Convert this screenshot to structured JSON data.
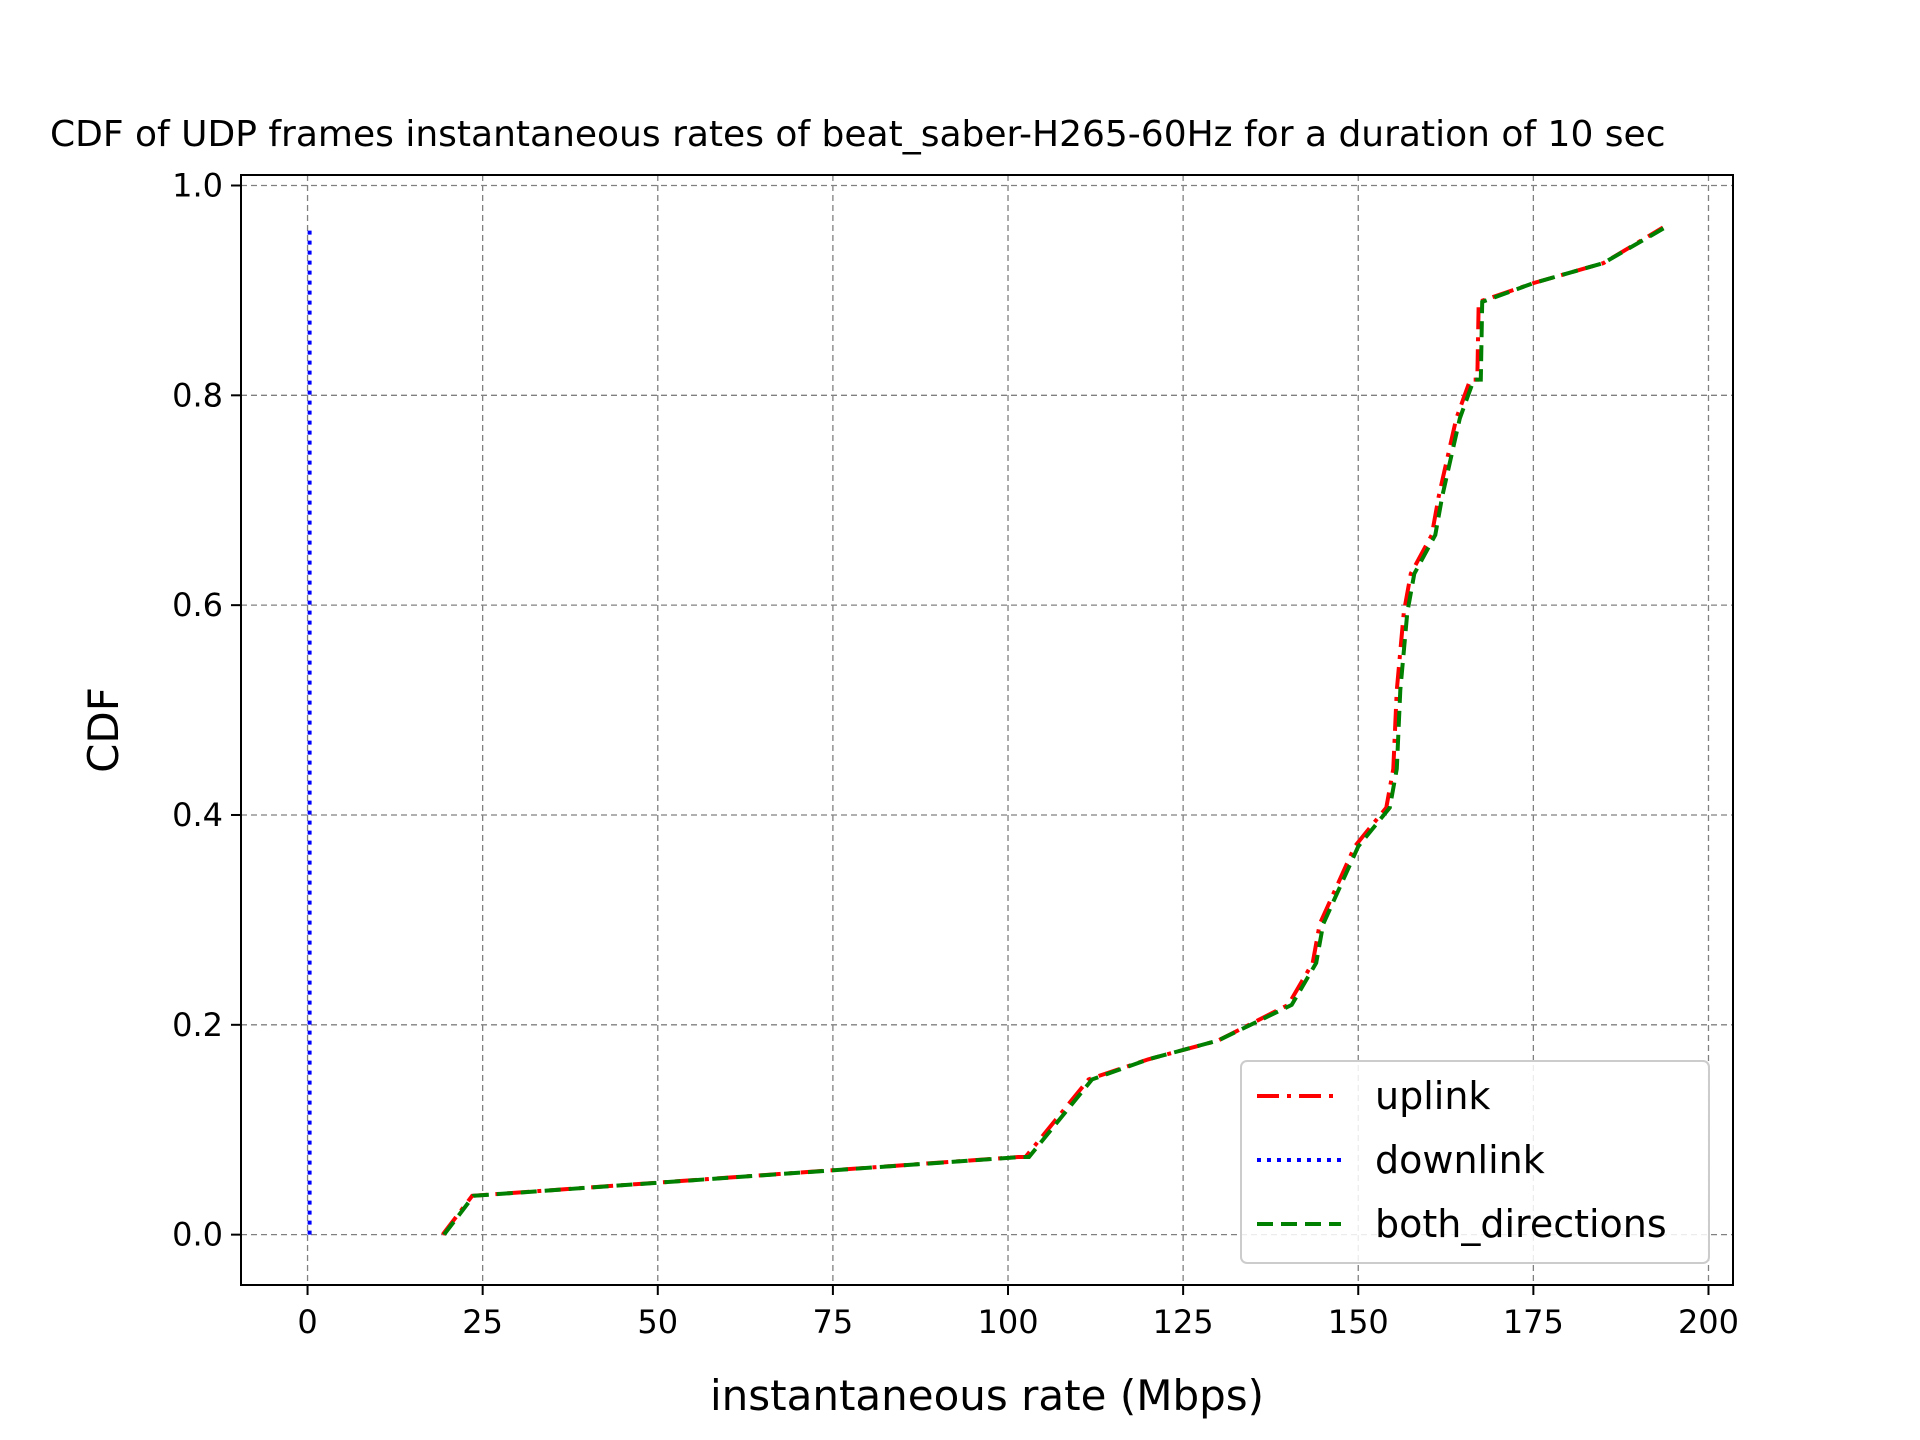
{
  "chart_data": {
    "type": "line",
    "title": "CDF of UDP frames instantaneous rates of beat_saber-H265-60Hz for a duration of 10 sec",
    "xlabel": "instantaneous rate (Mbps)",
    "ylabel": "CDF",
    "xlim": [
      -9.5,
      203.5
    ],
    "ylim": [
      -0.048,
      1.01
    ],
    "xticks": [
      0,
      25,
      50,
      75,
      100,
      125,
      150,
      175,
      200
    ],
    "xtick_labels": [
      "0",
      "25",
      "50",
      "75",
      "100",
      "125",
      "150",
      "175",
      "200"
    ],
    "yticks": [
      0.0,
      0.2,
      0.4,
      0.6,
      0.8,
      1.0
    ],
    "ytick_labels": [
      "0.0",
      "0.2",
      "0.4",
      "0.6",
      "0.8",
      "1.0"
    ],
    "grid": true,
    "legend_position": "lower-right",
    "series": [
      {
        "name": "uplink",
        "color": "#ff0000",
        "style": "dash-dot",
        "points": [
          [
            19.3,
            0.0
          ],
          [
            23.5,
            0.037
          ],
          [
            101.5,
            0.074
          ],
          [
            102.5,
            0.074
          ],
          [
            111.5,
            0.148
          ],
          [
            120,
            0.167
          ],
          [
            130,
            0.185
          ],
          [
            140,
            0.219
          ],
          [
            143.5,
            0.259
          ],
          [
            144.5,
            0.296
          ],
          [
            147,
            0.333
          ],
          [
            149.5,
            0.37
          ],
          [
            154,
            0.407
          ],
          [
            155,
            0.444
          ],
          [
            155.5,
            0.519
          ],
          [
            156.5,
            0.593
          ],
          [
            157.5,
            0.63
          ],
          [
            160.5,
            0.667
          ],
          [
            161.5,
            0.704
          ],
          [
            164,
            0.778
          ],
          [
            166,
            0.815
          ],
          [
            167,
            0.815
          ],
          [
            167.2,
            0.889
          ],
          [
            175,
            0.907
          ],
          [
            185,
            0.926
          ],
          [
            193.5,
            0.96
          ]
        ]
      },
      {
        "name": "downlink",
        "color": "#0000ff",
        "style": "dotted",
        "points": [
          [
            0.3,
            0.0
          ],
          [
            0.3,
            0.96
          ]
        ]
      },
      {
        "name": "both_directions",
        "color": "#008000",
        "style": "dashed",
        "points": [
          [
            19.5,
            0.0
          ],
          [
            23.7,
            0.037
          ],
          [
            101.8,
            0.074
          ],
          [
            103.0,
            0.074
          ],
          [
            112.0,
            0.148
          ],
          [
            120,
            0.167
          ],
          [
            130,
            0.185
          ],
          [
            140.5,
            0.219
          ],
          [
            144.0,
            0.259
          ],
          [
            145.0,
            0.296
          ],
          [
            147.5,
            0.333
          ],
          [
            150.0,
            0.37
          ],
          [
            154.5,
            0.407
          ],
          [
            155.5,
            0.444
          ],
          [
            156.0,
            0.519
          ],
          [
            157.0,
            0.593
          ],
          [
            158.0,
            0.63
          ],
          [
            161.0,
            0.667
          ],
          [
            162.0,
            0.704
          ],
          [
            164.5,
            0.778
          ],
          [
            166.5,
            0.815
          ],
          [
            167.5,
            0.815
          ],
          [
            167.7,
            0.889
          ],
          [
            175,
            0.907
          ],
          [
            185,
            0.926
          ],
          [
            193.8,
            0.96
          ]
        ]
      }
    ]
  }
}
